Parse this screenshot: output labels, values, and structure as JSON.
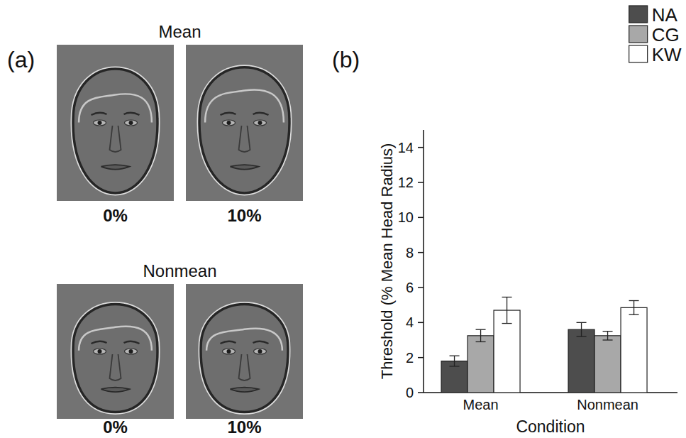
{
  "chart_data": {
    "type": "bar",
    "panel_label": "(b)",
    "categories": [
      "Mean",
      "Nonmean"
    ],
    "series": [
      {
        "name": "NA",
        "color": "#4d4d4d",
        "values": [
          1.8,
          3.6
        ],
        "errors": [
          0.3,
          0.4
        ]
      },
      {
        "name": "CG",
        "color": "#a8a8a8",
        "values": [
          3.25,
          3.25
        ],
        "errors": [
          0.35,
          0.25
        ]
      },
      {
        "name": "KW",
        "color": "#ffffff",
        "values": [
          4.7,
          4.85
        ],
        "errors": [
          0.75,
          0.4
        ]
      }
    ],
    "x_label": "Condition",
    "y_label": "Threshold (% Mean Head Radius)",
    "ylim": [
      0,
      15
    ],
    "yticks": [
      0,
      2,
      4,
      6,
      8,
      10,
      12,
      14
    ],
    "grid": false,
    "legend": "top-right"
  },
  "panel_a": {
    "label": "(a)",
    "groups": [
      {
        "title": "Mean",
        "images": [
          "0%",
          "10%"
        ]
      },
      {
        "title": "Nonmean",
        "images": [
          "0%",
          "10%"
        ]
      }
    ]
  }
}
